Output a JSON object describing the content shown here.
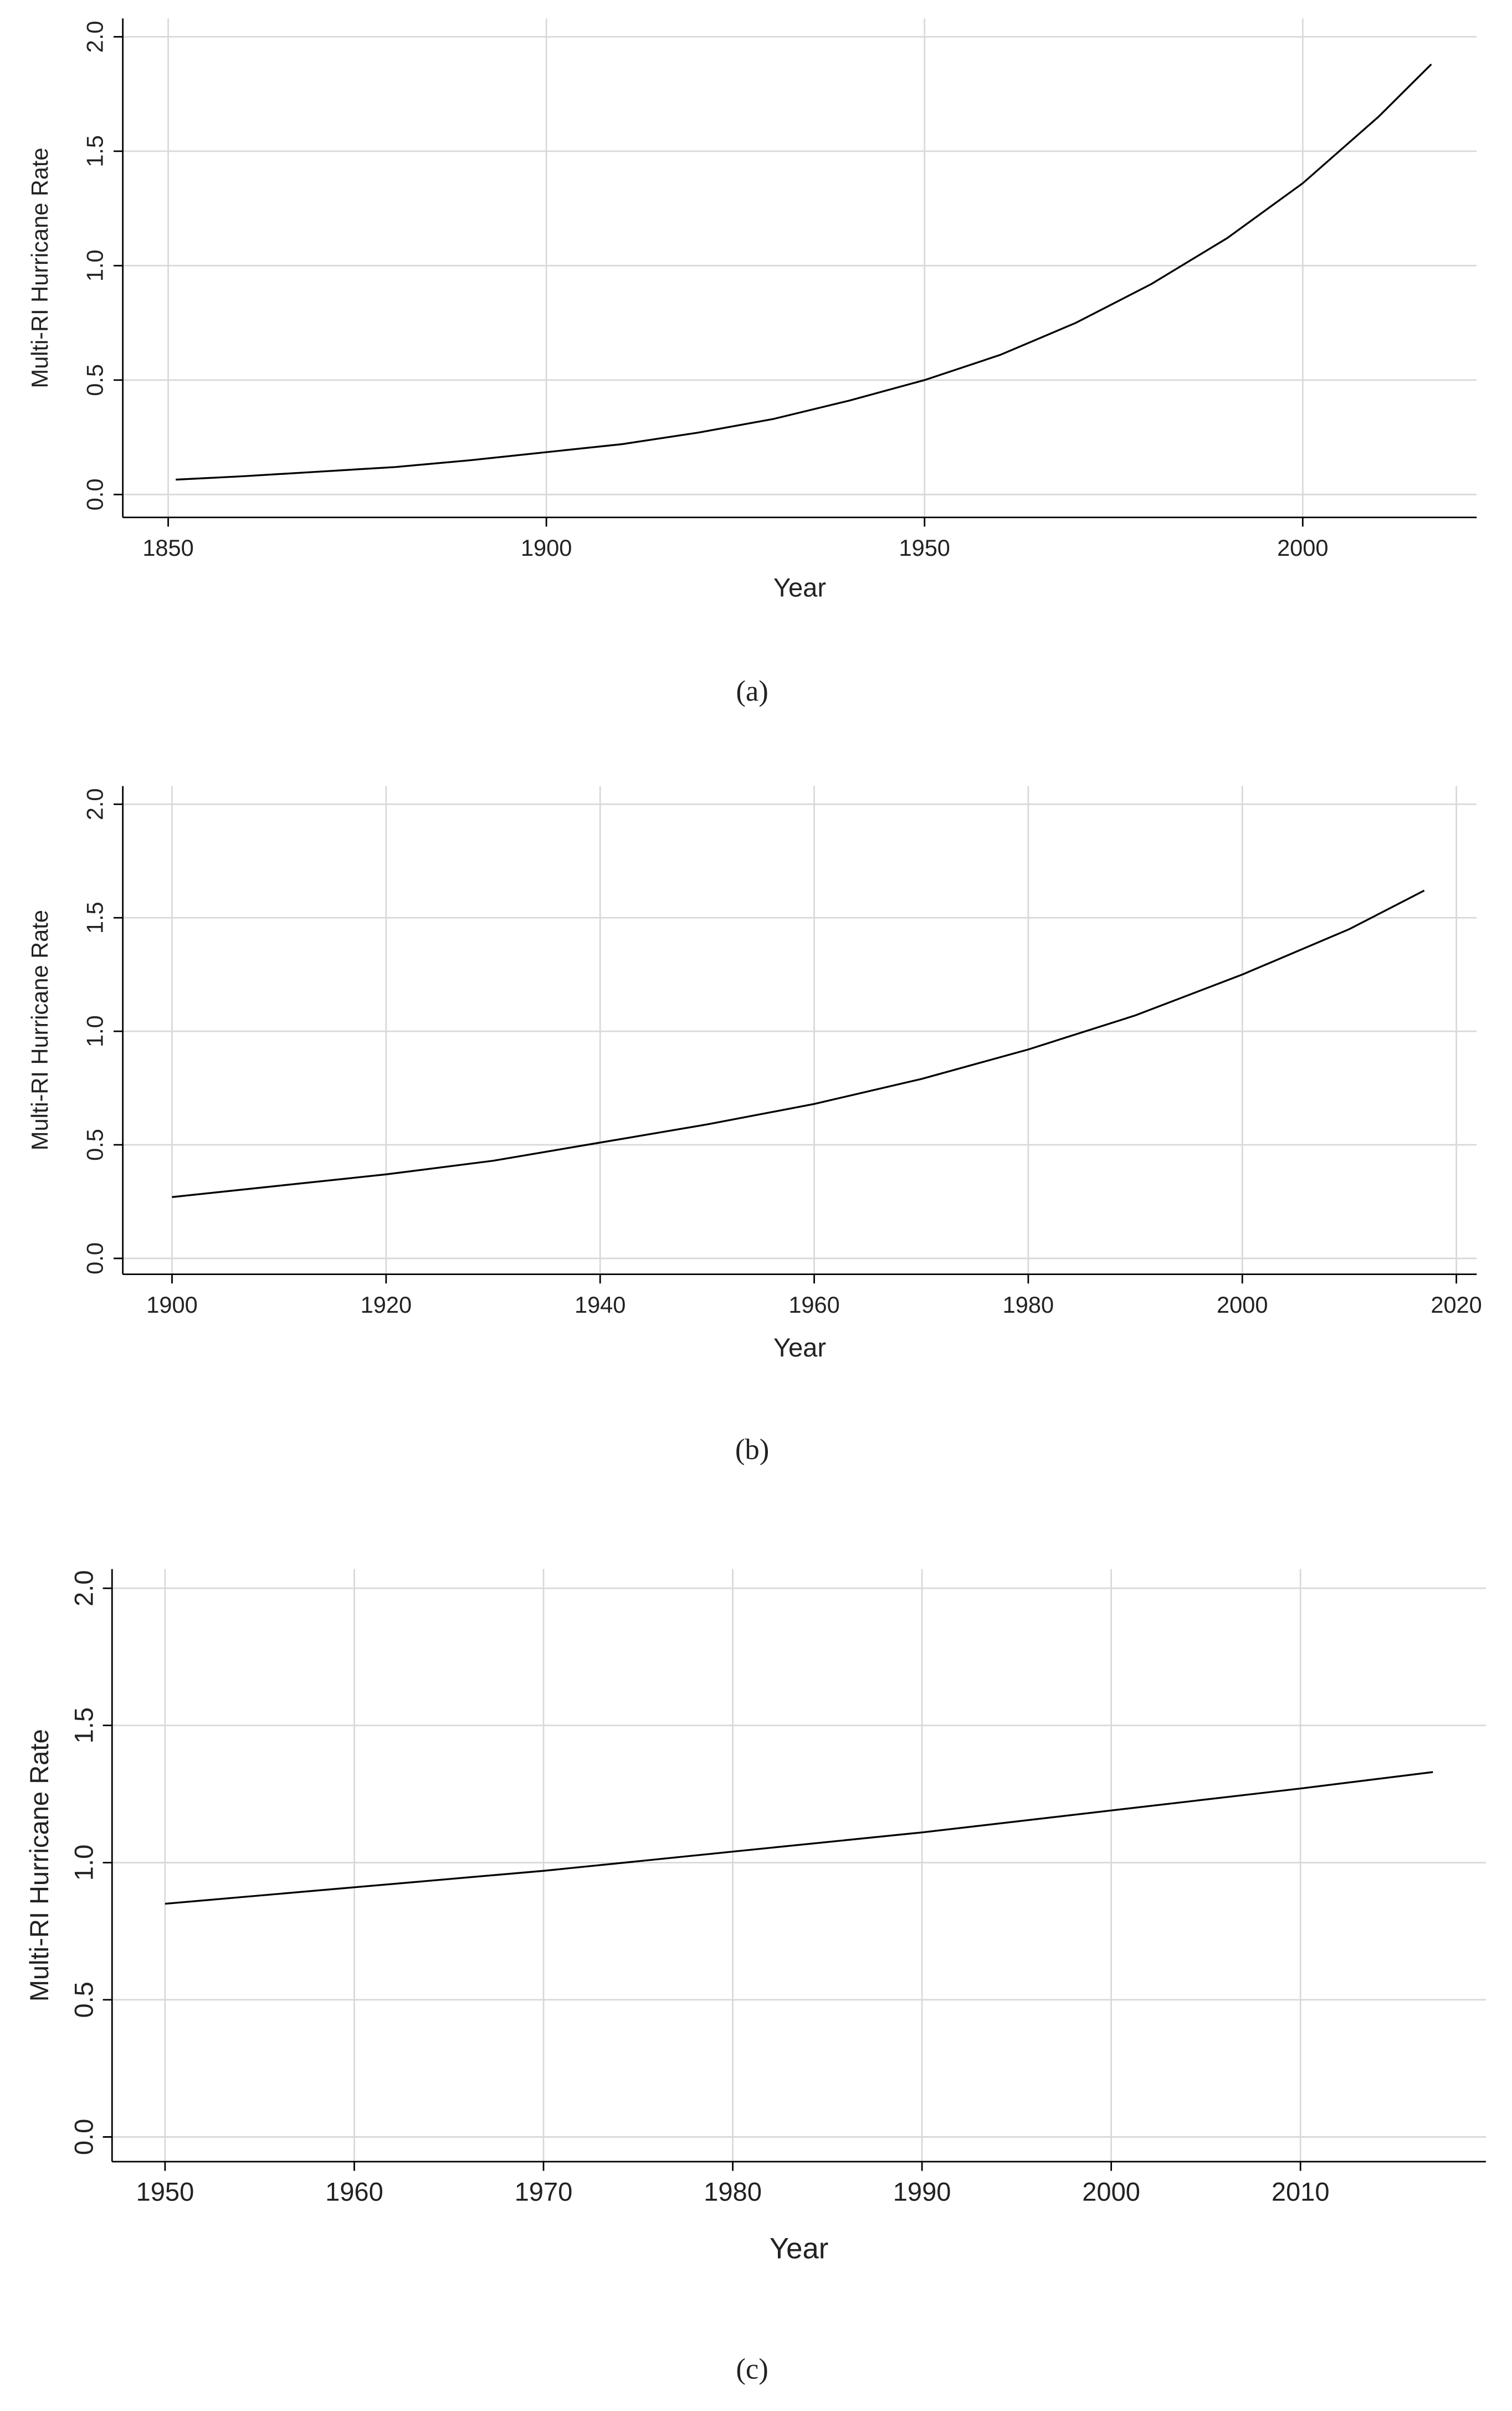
{
  "chart_data": [
    {
      "type": "line",
      "caption": "(a)",
      "xlabel": "Year",
      "ylabel": "Multi-RI Hurricane Rate",
      "xlim": [
        1844,
        2023
      ],
      "ylim": [
        -0.1,
        2.08
      ],
      "xticks": [
        1850,
        1900,
        1950,
        2000
      ],
      "yticks": [
        {
          "value": 0,
          "label": "0.0"
        },
        0.5,
        {
          "value": 1,
          "label": "1.0"
        },
        1.5,
        {
          "value": 2,
          "label": "2.0"
        }
      ],
      "grid": true,
      "x": [
        1851,
        1860,
        1870,
        1880,
        1890,
        1900,
        1910,
        1920,
        1930,
        1940,
        1950,
        1960,
        1970,
        1980,
        1990,
        2000,
        2010,
        2017
      ],
      "series": [
        {
          "color": "#000000",
          "values": [
            0.065,
            0.08,
            0.1,
            0.12,
            0.15,
            0.185,
            0.22,
            0.27,
            0.33,
            0.41,
            0.5,
            0.61,
            0.75,
            0.92,
            1.12,
            1.36,
            1.65,
            1.88
          ]
        }
      ]
    },
    {
      "type": "line",
      "caption": "(b)",
      "xlabel": "Year",
      "ylabel": "Multi-RI Hurricane Rate",
      "xlim": [
        1895.4,
        2021.9
      ],
      "ylim": [
        -0.07,
        2.08
      ],
      "xticks": [
        1900,
        1920,
        1940,
        1960,
        1980,
        2000,
        2020
      ],
      "yticks": [
        {
          "value": 0,
          "label": "0.0"
        },
        0.5,
        {
          "value": 1,
          "label": "1.0"
        },
        1.5,
        {
          "value": 2,
          "label": "2.0"
        }
      ],
      "grid": true,
      "x": [
        1900,
        1910,
        1920,
        1930,
        1940,
        1950,
        1960,
        1970,
        1980,
        1990,
        2000,
        2010,
        2017
      ],
      "series": [
        {
          "color": "#000000",
          "values": [
            0.27,
            0.32,
            0.37,
            0.43,
            0.51,
            0.59,
            0.68,
            0.79,
            0.92,
            1.07,
            1.25,
            1.45,
            1.62
          ]
        }
      ]
    },
    {
      "type": "line",
      "caption": "(c)",
      "xlabel": "Year",
      "ylabel": "Multi-RI Hurricane Rate",
      "xlim": [
        1947.2,
        2019.8
      ],
      "ylim": [
        -0.09,
        2.07
      ],
      "xticks": [
        1950,
        1960,
        1970,
        1980,
        1990,
        2000,
        2010
      ],
      "yticks": [
        {
          "value": 0,
          "label": "0.0"
        },
        0.5,
        {
          "value": 1,
          "label": "1.0"
        },
        1.5,
        {
          "value": 2,
          "label": "2.0"
        }
      ],
      "grid": true,
      "x": [
        1950,
        1960,
        1970,
        1980,
        1990,
        2000,
        2010,
        2017
      ],
      "series": [
        {
          "color": "#000000",
          "values": [
            0.85,
            0.91,
            0.97,
            1.04,
            1.11,
            1.19,
            1.27,
            1.33
          ]
        }
      ]
    }
  ]
}
